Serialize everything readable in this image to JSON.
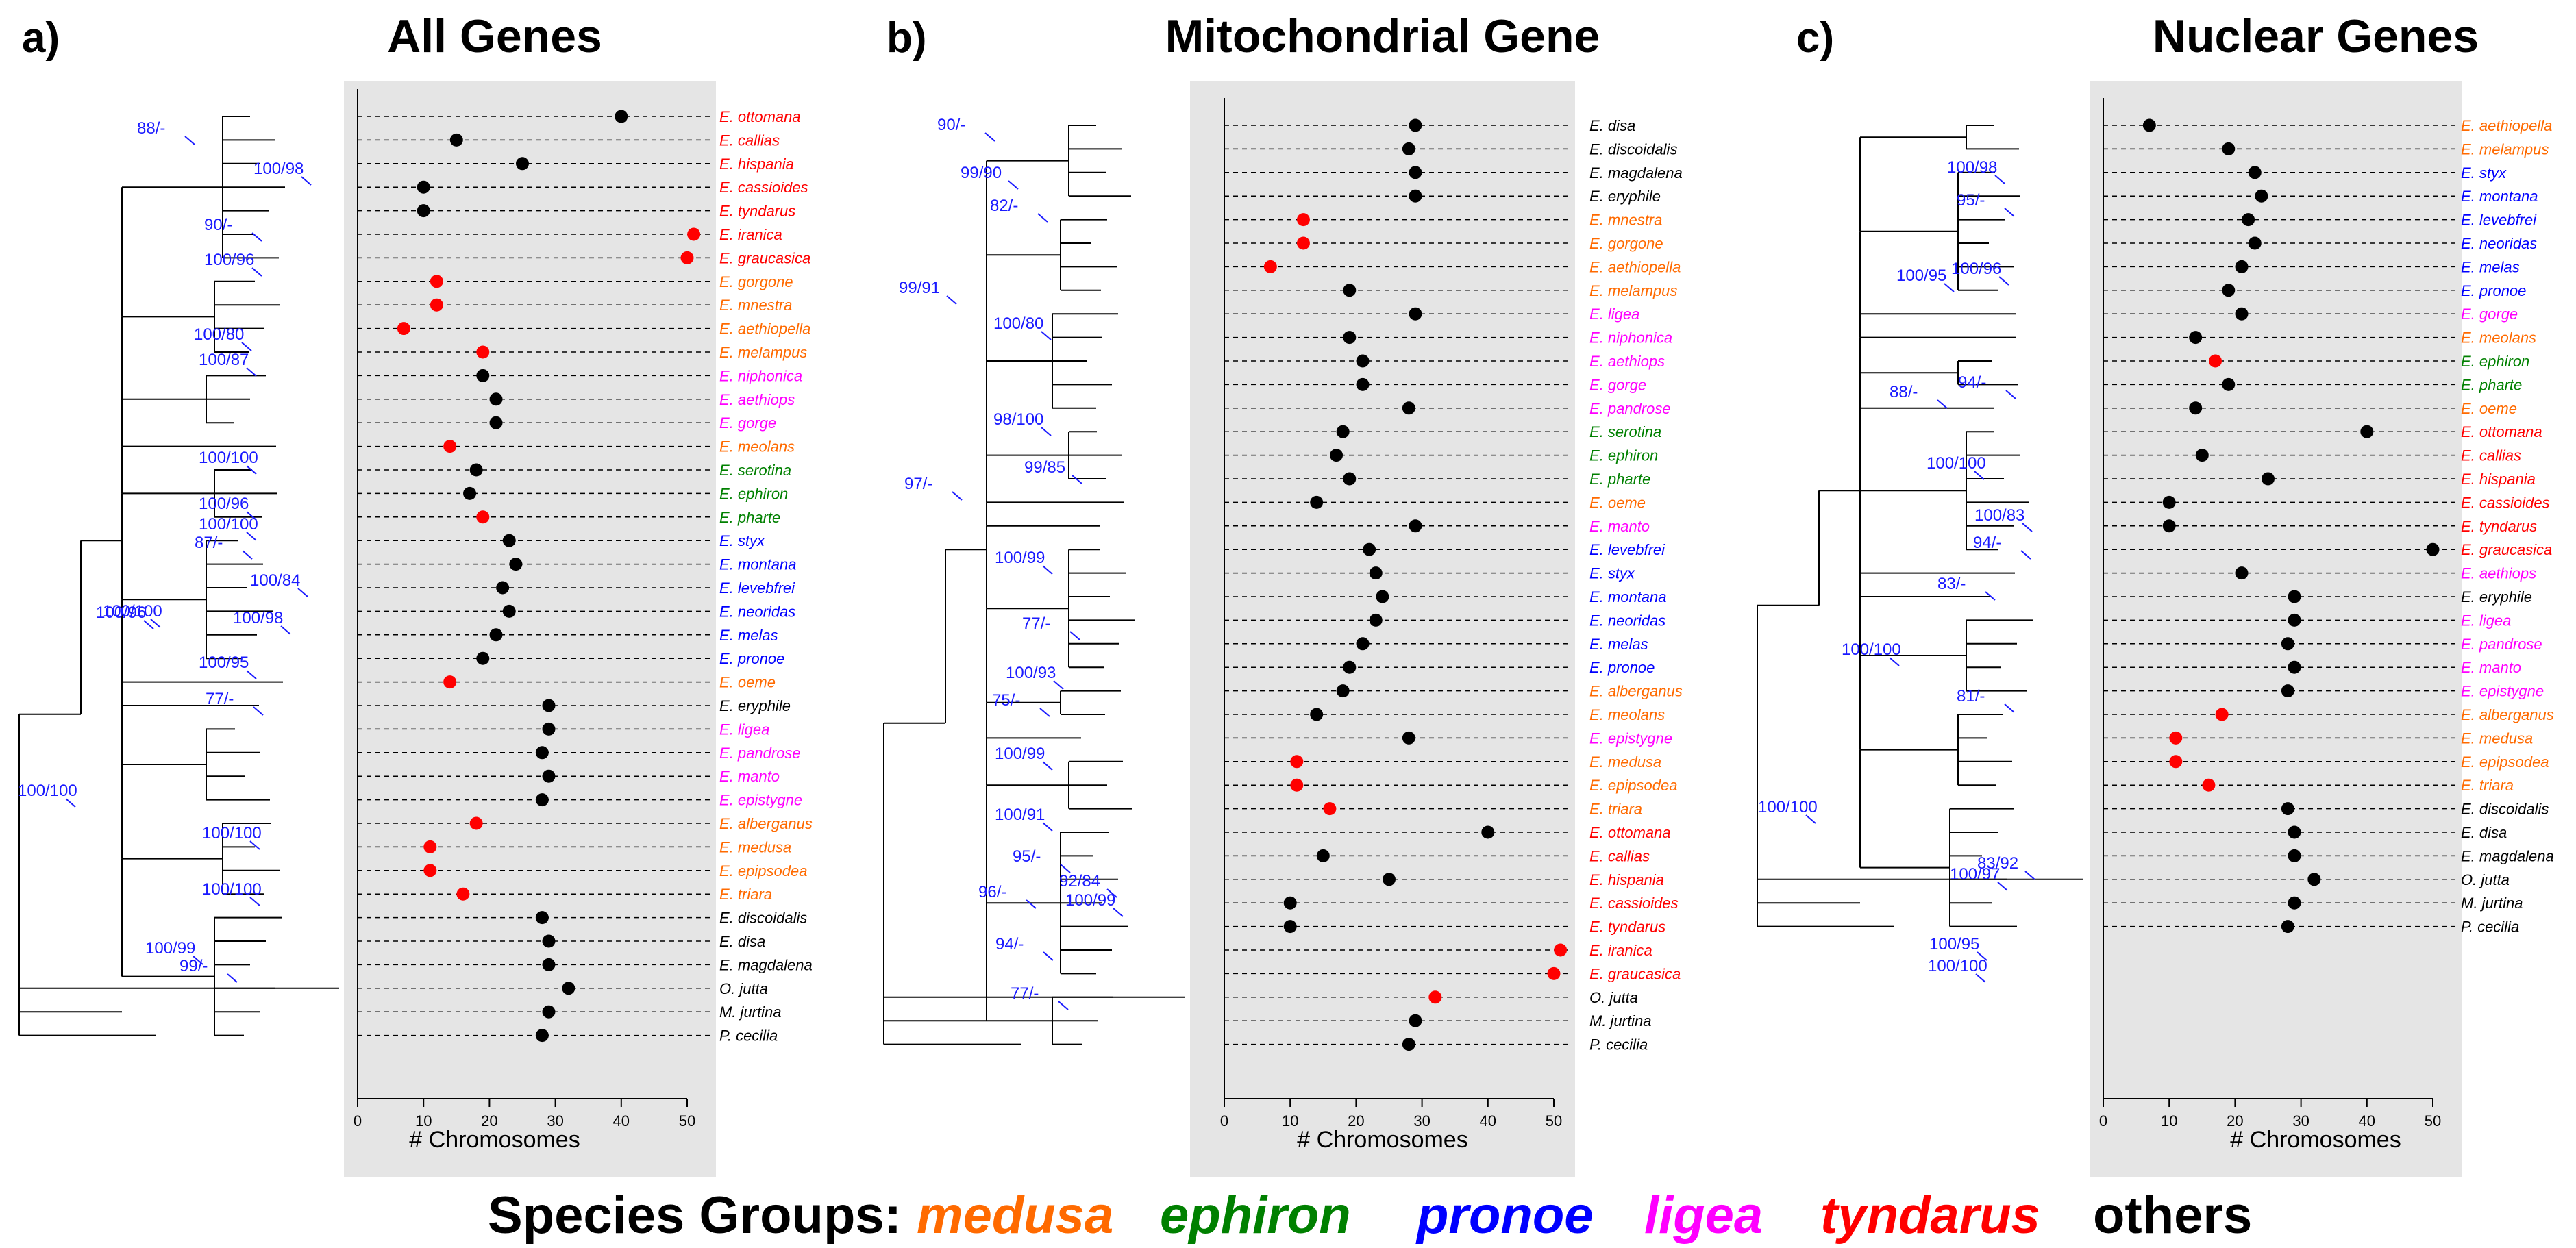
{
  "legend": {
    "prefix": "Species Groups:",
    "groups": [
      {
        "name": "medusa",
        "color": "#ff6a00"
      },
      {
        "name": "ephiron",
        "color": "#008000"
      },
      {
        "name": "pronoe",
        "color": "#0000ff"
      },
      {
        "name": "ligea",
        "color": "#ff00ff"
      },
      {
        "name": "tyndarus",
        "color": "#ff0000"
      },
      {
        "name": "others",
        "color": "#000000"
      }
    ]
  },
  "colors": {
    "medusa": "#ff6a00",
    "ephiron": "#008000",
    "pronoe": "#0000ff",
    "ligea": "#ff00ff",
    "tyndarus": "#ff0000",
    "others": "#000000",
    "panel_bg": "#e5e5e5",
    "support": "#1a1aff",
    "dot_black": "#000000",
    "dot_red": "#ff0000"
  },
  "chart_data": [
    {
      "type": "scatter",
      "panel": "a)",
      "title": "All Genes",
      "xlabel": "# Chromosomes",
      "xlim": [
        0,
        52
      ],
      "xticks": [
        0,
        10,
        20,
        30,
        40,
        50
      ],
      "support_values": [
        "100/100",
        "88/-",
        "100/98",
        "90/-",
        "100/96",
        "100/80",
        "100/87",
        "100/100",
        "100/96",
        "87/-",
        "100/100",
        "100/84",
        "100/98",
        "100/95",
        "100/96",
        "77/-",
        "100/100",
        "100/100",
        "100/99",
        "99/-",
        "100/100"
      ],
      "species": [
        {
          "name": "E. ottomana",
          "group": "tyndarus",
          "value": 40,
          "highlight": false
        },
        {
          "name": "E. callias",
          "group": "tyndarus",
          "value": 15,
          "highlight": false
        },
        {
          "name": "E. hispania",
          "group": "tyndarus",
          "value": 25,
          "highlight": false
        },
        {
          "name": "E. cassioides",
          "group": "tyndarus",
          "value": 10,
          "highlight": false
        },
        {
          "name": "E. tyndarus",
          "group": "tyndarus",
          "value": 10,
          "highlight": false
        },
        {
          "name": "E. iranica",
          "group": "tyndarus",
          "value": 51,
          "highlight": true
        },
        {
          "name": "E. graucasica",
          "group": "tyndarus",
          "value": 50,
          "highlight": true
        },
        {
          "name": "E. gorgone",
          "group": "medusa",
          "value": 12,
          "highlight": true
        },
        {
          "name": "E. mnestra",
          "group": "medusa",
          "value": 12,
          "highlight": true
        },
        {
          "name": "E. aethiopella",
          "group": "medusa",
          "value": 7,
          "highlight": true
        },
        {
          "name": "E. melampus",
          "group": "medusa",
          "value": 19,
          "highlight": true
        },
        {
          "name": "E. niphonica",
          "group": "ligea",
          "value": 19,
          "highlight": false
        },
        {
          "name": "E. aethiops",
          "group": "ligea",
          "value": 21,
          "highlight": false
        },
        {
          "name": "E. gorge",
          "group": "ligea",
          "value": 21,
          "highlight": false
        },
        {
          "name": "E. meolans",
          "group": "medusa",
          "value": 14,
          "highlight": true
        },
        {
          "name": "E. serotina",
          "group": "ephiron",
          "value": 18,
          "highlight": false
        },
        {
          "name": "E. ephiron",
          "group": "ephiron",
          "value": 17,
          "highlight": false
        },
        {
          "name": "E. pharte",
          "group": "ephiron",
          "value": 19,
          "highlight": true
        },
        {
          "name": "E. styx",
          "group": "pronoe",
          "value": 23,
          "highlight": false
        },
        {
          "name": "E. montana",
          "group": "pronoe",
          "value": 24,
          "highlight": false
        },
        {
          "name": "E. levebfrei",
          "group": "pronoe",
          "value": 22,
          "highlight": false
        },
        {
          "name": "E. neoridas",
          "group": "pronoe",
          "value": 23,
          "highlight": false
        },
        {
          "name": "E. melas",
          "group": "pronoe",
          "value": 21,
          "highlight": false
        },
        {
          "name": "E. pronoe",
          "group": "pronoe",
          "value": 19,
          "highlight": false
        },
        {
          "name": "E. oeme",
          "group": "medusa",
          "value": 14,
          "highlight": true
        },
        {
          "name": "E. eryphile",
          "group": "others",
          "value": 29,
          "highlight": false
        },
        {
          "name": "E. ligea",
          "group": "ligea",
          "value": 29,
          "highlight": false
        },
        {
          "name": "E. pandrose",
          "group": "ligea",
          "value": 28,
          "highlight": false
        },
        {
          "name": "E. manto",
          "group": "ligea",
          "value": 29,
          "highlight": false
        },
        {
          "name": "E. epistygne",
          "group": "ligea",
          "value": 28,
          "highlight": false
        },
        {
          "name": "E. alberganus",
          "group": "medusa",
          "value": 18,
          "highlight": true
        },
        {
          "name": "E. medusa",
          "group": "medusa",
          "value": 11,
          "highlight": true
        },
        {
          "name": "E. epipsodea",
          "group": "medusa",
          "value": 11,
          "highlight": true
        },
        {
          "name": "E. triara",
          "group": "medusa",
          "value": 16,
          "highlight": true
        },
        {
          "name": "E. discoidalis",
          "group": "others",
          "value": 28,
          "highlight": false
        },
        {
          "name": "E. disa",
          "group": "others",
          "value": 29,
          "highlight": false
        },
        {
          "name": "E. magdalena",
          "group": "others",
          "value": 29,
          "highlight": false
        },
        {
          "name": "O. jutta",
          "group": "others",
          "value": 32,
          "highlight": false
        },
        {
          "name": "M. jurtina",
          "group": "others",
          "value": 29,
          "highlight": false
        },
        {
          "name": "P. cecilia",
          "group": "others",
          "value": 28,
          "highlight": false
        }
      ]
    },
    {
      "type": "scatter",
      "panel": "b)",
      "title": "Mitochondrial Gene",
      "xlabel": "# Chromosomes",
      "xlim": [
        0,
        52
      ],
      "xticks": [
        0,
        10,
        20,
        30,
        40,
        50
      ],
      "support_values": [
        "90/-",
        "99/90",
        "99/91",
        "82/-",
        "100/80",
        "98/100",
        "99/85",
        "97/-",
        "100/99",
        "77/-",
        "100/93",
        "75/-",
        "100/99",
        "100/91",
        "95/-",
        "92/84",
        "100/99",
        "96/-",
        "94/-",
        "77/-"
      ],
      "species": [
        {
          "name": "E. disa",
          "group": "others",
          "value": 29,
          "highlight": false
        },
        {
          "name": "E. discoidalis",
          "group": "others",
          "value": 28,
          "highlight": false
        },
        {
          "name": "E. magdalena",
          "group": "others",
          "value": 29,
          "highlight": false
        },
        {
          "name": "E. eryphile",
          "group": "others",
          "value": 29,
          "highlight": false
        },
        {
          "name": "E. mnestra",
          "group": "medusa",
          "value": 12,
          "highlight": true
        },
        {
          "name": "E. gorgone",
          "group": "medusa",
          "value": 12,
          "highlight": true
        },
        {
          "name": "E. aethiopella",
          "group": "medusa",
          "value": 7,
          "highlight": true
        },
        {
          "name": "E. melampus",
          "group": "medusa",
          "value": 19,
          "highlight": false
        },
        {
          "name": "E. ligea",
          "group": "ligea",
          "value": 29,
          "highlight": false
        },
        {
          "name": "E. niphonica",
          "group": "ligea",
          "value": 19,
          "highlight": false
        },
        {
          "name": "E. aethiops",
          "group": "ligea",
          "value": 21,
          "highlight": false
        },
        {
          "name": "E. gorge",
          "group": "ligea",
          "value": 21,
          "highlight": false
        },
        {
          "name": "E. pandrose",
          "group": "ligea",
          "value": 28,
          "highlight": false
        },
        {
          "name": "E. serotina",
          "group": "ephiron",
          "value": 18,
          "highlight": false
        },
        {
          "name": "E. ephiron",
          "group": "ephiron",
          "value": 17,
          "highlight": false
        },
        {
          "name": "E. pharte",
          "group": "ephiron",
          "value": 19,
          "highlight": false
        },
        {
          "name": "E. oeme",
          "group": "medusa",
          "value": 14,
          "highlight": false
        },
        {
          "name": "E. manto",
          "group": "ligea",
          "value": 29,
          "highlight": false
        },
        {
          "name": "E. levebfrei",
          "group": "pronoe",
          "value": 22,
          "highlight": false
        },
        {
          "name": "E. styx",
          "group": "pronoe",
          "value": 23,
          "highlight": false
        },
        {
          "name": "E. montana",
          "group": "pronoe",
          "value": 24,
          "highlight": false
        },
        {
          "name": "E. neoridas",
          "group": "pronoe",
          "value": 23,
          "highlight": false
        },
        {
          "name": "E. melas",
          "group": "pronoe",
          "value": 21,
          "highlight": false
        },
        {
          "name": "E. pronoe",
          "group": "pronoe",
          "value": 19,
          "highlight": false
        },
        {
          "name": "E. alberganus",
          "group": "medusa",
          "value": 18,
          "highlight": false
        },
        {
          "name": "E. meolans",
          "group": "medusa",
          "value": 14,
          "highlight": false
        },
        {
          "name": "E. epistygne",
          "group": "ligea",
          "value": 28,
          "highlight": false
        },
        {
          "name": "E. medusa",
          "group": "medusa",
          "value": 11,
          "highlight": true
        },
        {
          "name": "E. epipsodea",
          "group": "medusa",
          "value": 11,
          "highlight": true
        },
        {
          "name": "E. triara",
          "group": "medusa",
          "value": 16,
          "highlight": true
        },
        {
          "name": "E. ottomana",
          "group": "tyndarus",
          "value": 40,
          "highlight": false
        },
        {
          "name": "E. callias",
          "group": "tyndarus",
          "value": 15,
          "highlight": false
        },
        {
          "name": "E. hispania",
          "group": "tyndarus",
          "value": 25,
          "highlight": false
        },
        {
          "name": "E. cassioides",
          "group": "tyndarus",
          "value": 10,
          "highlight": false
        },
        {
          "name": "E. tyndarus",
          "group": "tyndarus",
          "value": 10,
          "highlight": false
        },
        {
          "name": "E. iranica",
          "group": "tyndarus",
          "value": 51,
          "highlight": true
        },
        {
          "name": "E. graucasica",
          "group": "tyndarus",
          "value": 50,
          "highlight": true
        },
        {
          "name": "O. jutta",
          "group": "others",
          "value": 32,
          "highlight": true
        },
        {
          "name": "M. jurtina",
          "group": "others",
          "value": 29,
          "highlight": false
        },
        {
          "name": "P. cecilia",
          "group": "others",
          "value": 28,
          "highlight": false
        }
      ]
    },
    {
      "type": "scatter",
      "panel": "c)",
      "title": "Nuclear Genes",
      "xlabel": "# Chromosomes",
      "xlim": [
        0,
        52
      ],
      "xticks": [
        0,
        10,
        20,
        30,
        40,
        50
      ],
      "support_values": [
        "100/98",
        "95/-",
        "100/95",
        "100/96",
        "88/-",
        "94/-",
        "100/100",
        "100/83",
        "94/-",
        "83/-",
        "100/100",
        "81/-",
        "100/100",
        "83/92",
        "100/97",
        "100/95",
        "100/100"
      ],
      "species": [
        {
          "name": "E. aethiopella",
          "group": "medusa",
          "value": 7,
          "highlight": false
        },
        {
          "name": "E. melampus",
          "group": "medusa",
          "value": 19,
          "highlight": false
        },
        {
          "name": "E. styx",
          "group": "pronoe",
          "value": 23,
          "highlight": false
        },
        {
          "name": "E. montana",
          "group": "pronoe",
          "value": 24,
          "highlight": false
        },
        {
          "name": "E. levebfrei",
          "group": "pronoe",
          "value": 22,
          "highlight": false
        },
        {
          "name": "E. neoridas",
          "group": "pronoe",
          "value": 23,
          "highlight": false
        },
        {
          "name": "E. melas",
          "group": "pronoe",
          "value": 21,
          "highlight": false
        },
        {
          "name": "E. pronoe",
          "group": "pronoe",
          "value": 19,
          "highlight": false
        },
        {
          "name": "E. gorge",
          "group": "ligea",
          "value": 21,
          "highlight": false
        },
        {
          "name": "E. meolans",
          "group": "medusa",
          "value": 14,
          "highlight": false
        },
        {
          "name": "E. ephiron",
          "group": "ephiron",
          "value": 17,
          "highlight": true
        },
        {
          "name": "E. pharte",
          "group": "ephiron",
          "value": 19,
          "highlight": false
        },
        {
          "name": "E. oeme",
          "group": "medusa",
          "value": 14,
          "highlight": false
        },
        {
          "name": "E. ottomana",
          "group": "tyndarus",
          "value": 40,
          "highlight": false
        },
        {
          "name": "E. callias",
          "group": "tyndarus",
          "value": 15,
          "highlight": false
        },
        {
          "name": "E. hispania",
          "group": "tyndarus",
          "value": 25,
          "highlight": false
        },
        {
          "name": "E. cassioides",
          "group": "tyndarus",
          "value": 10,
          "highlight": false
        },
        {
          "name": "E. tyndarus",
          "group": "tyndarus",
          "value": 10,
          "highlight": false
        },
        {
          "name": "E. graucasica",
          "group": "tyndarus",
          "value": 50,
          "highlight": false
        },
        {
          "name": "E. aethiops",
          "group": "ligea",
          "value": 21,
          "highlight": false
        },
        {
          "name": "E. eryphile",
          "group": "others",
          "value": 29,
          "highlight": false
        },
        {
          "name": "E. ligea",
          "group": "ligea",
          "value": 29,
          "highlight": false
        },
        {
          "name": "E. pandrose",
          "group": "ligea",
          "value": 28,
          "highlight": false
        },
        {
          "name": "E. manto",
          "group": "ligea",
          "value": 29,
          "highlight": false
        },
        {
          "name": "E. epistygne",
          "group": "ligea",
          "value": 28,
          "highlight": false
        },
        {
          "name": "E. alberganus",
          "group": "medusa",
          "value": 18,
          "highlight": true
        },
        {
          "name": "E. medusa",
          "group": "medusa",
          "value": 11,
          "highlight": true
        },
        {
          "name": "E. epipsodea",
          "group": "medusa",
          "value": 11,
          "highlight": true
        },
        {
          "name": "E. triara",
          "group": "medusa",
          "value": 16,
          "highlight": true
        },
        {
          "name": "E. discoidalis",
          "group": "others",
          "value": 28,
          "highlight": false
        },
        {
          "name": "E. disa",
          "group": "others",
          "value": 29,
          "highlight": false
        },
        {
          "name": "E. magdalena",
          "group": "others",
          "value": 29,
          "highlight": false
        },
        {
          "name": "O. jutta",
          "group": "others",
          "value": 32,
          "highlight": false
        },
        {
          "name": "M. jurtina",
          "group": "others",
          "value": 29,
          "highlight": false
        },
        {
          "name": "P. cecilia",
          "group": "others",
          "value": 28,
          "highlight": false
        }
      ]
    }
  ]
}
